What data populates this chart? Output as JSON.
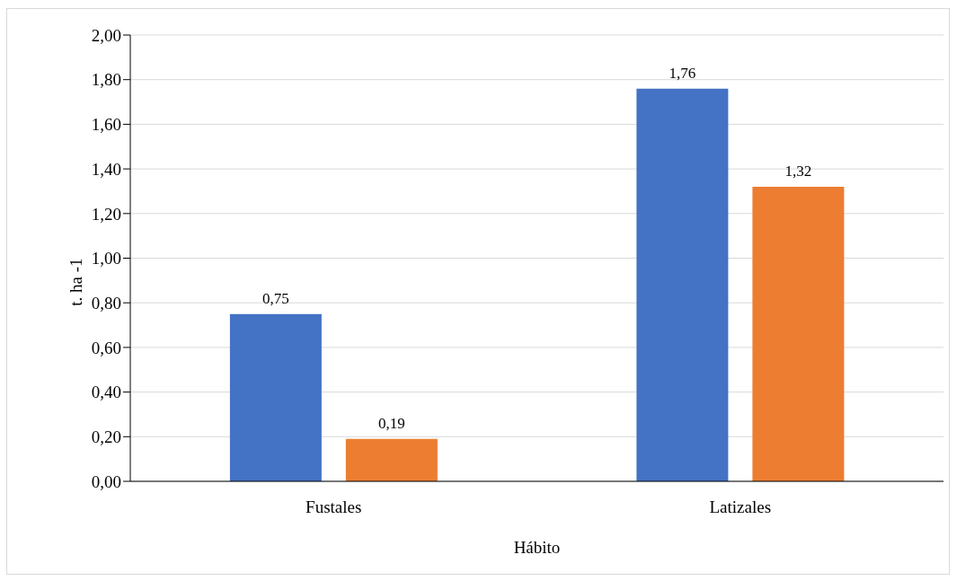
{
  "chart_data": {
    "type": "bar",
    "xlabel": "Hábito",
    "ylabel": "t. ha -1",
    "categories": [
      "Fustales",
      "Latizales"
    ],
    "series": [
      {
        "color": "#4472c4",
        "values": [
          0.75,
          1.76
        ],
        "value_labels": [
          "0,75",
          "1,76"
        ]
      },
      {
        "color": "#ed7d31",
        "values": [
          0.19,
          1.32
        ],
        "value_labels": [
          "0,19",
          "1,32"
        ]
      }
    ],
    "ylim": [
      0,
      2
    ],
    "yticks": [
      {
        "value": 0,
        "label": "0,00"
      },
      {
        "value": 0.2,
        "label": "0,20"
      },
      {
        "value": 0.4,
        "label": "0,40"
      },
      {
        "value": 0.6,
        "label": "0,60"
      },
      {
        "value": 0.8,
        "label": "0,80"
      },
      {
        "value": 1,
        "label": "1,00"
      },
      {
        "value": 1.2,
        "label": "1,20"
      },
      {
        "value": 1.4,
        "label": "1,40"
      },
      {
        "value": 1.6,
        "label": "1,60"
      },
      {
        "value": 1.8,
        "label": "1,80"
      },
      {
        "value": 2,
        "label": "2,00"
      }
    ],
    "grid": "y",
    "legend": false
  }
}
